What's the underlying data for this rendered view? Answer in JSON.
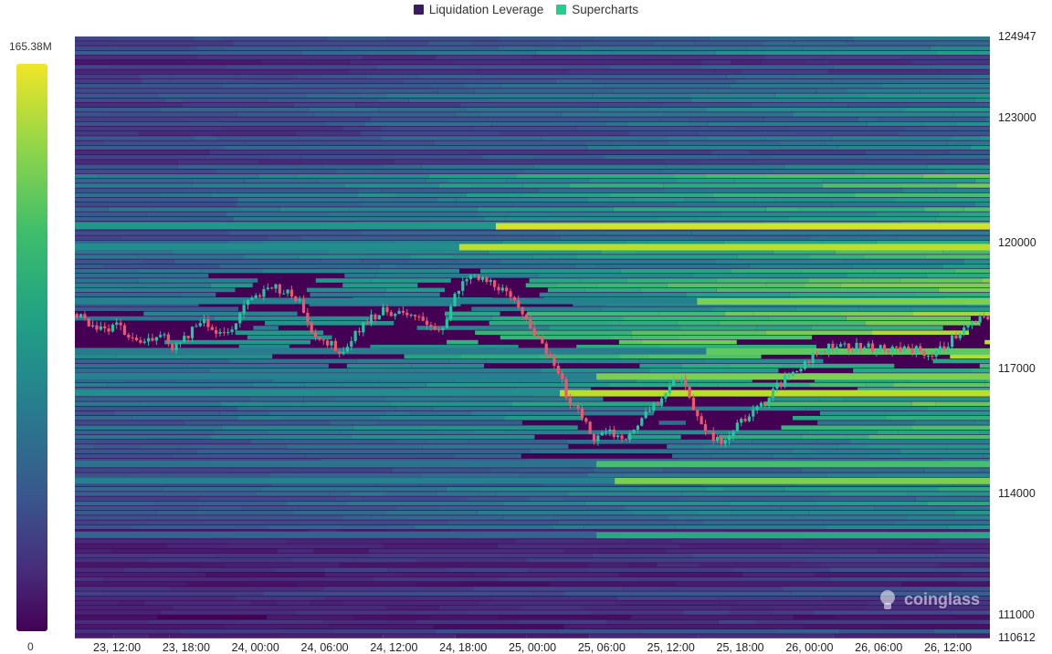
{
  "legend": {
    "items": [
      {
        "label": "Liquidation Leverage",
        "color": "#3b1a63"
      },
      {
        "label": "Supercharts",
        "color": "#1fcf8a"
      }
    ]
  },
  "colorbar": {
    "max_label": "165.38M",
    "min_label": "0"
  },
  "watermark": {
    "text": "coinglass",
    "icon": "coinglass-logo-icon"
  },
  "colors": {
    "up_candle": "#26c6a0",
    "down_candle": "#f0566e",
    "heat_low": "#440154",
    "heat_high": "#f0e626"
  },
  "chart_data": {
    "type": "heatmap",
    "ylim": [
      110612,
      124947
    ],
    "y_ticks": [
      "124947",
      "123000",
      "120000",
      "117000",
      "114000",
      "111000",
      "110612"
    ],
    "x_ticks": [
      "23, 12:00",
      "23, 18:00",
      "24, 00:00",
      "24, 06:00",
      "24, 12:00",
      "24, 18:00",
      "25, 00:00",
      "25, 06:00",
      "25, 12:00",
      "25, 18:00",
      "26, 00:00",
      "26, 06:00",
      "26, 12:00"
    ],
    "price_path": [
      [
        0,
        118300
      ],
      [
        5,
        118100
      ],
      [
        10,
        117900
      ],
      [
        15,
        118000
      ],
      [
        20,
        117700
      ],
      [
        25,
        117600
      ],
      [
        30,
        117900
      ],
      [
        35,
        117500
      ],
      [
        40,
        117800
      ],
      [
        45,
        118200
      ],
      [
        50,
        117900
      ],
      [
        55,
        117800
      ],
      [
        60,
        118500
      ],
      [
        65,
        118700
      ],
      [
        70,
        119000
      ],
      [
        75,
        118800
      ],
      [
        80,
        118600
      ],
      [
        85,
        117800
      ],
      [
        90,
        117600
      ],
      [
        95,
        117400
      ],
      [
        100,
        117900
      ],
      [
        105,
        118200
      ],
      [
        110,
        118400
      ],
      [
        115,
        118300
      ],
      [
        120,
        118200
      ],
      [
        125,
        118100
      ],
      [
        130,
        117900
      ],
      [
        135,
        118700
      ],
      [
        140,
        119200
      ],
      [
        145,
        119100
      ],
      [
        150,
        119000
      ],
      [
        155,
        118600
      ],
      [
        160,
        118300
      ],
      [
        165,
        117600
      ],
      [
        170,
        117200
      ],
      [
        175,
        116300
      ],
      [
        180,
        115800
      ],
      [
        185,
        115300
      ],
      [
        190,
        115500
      ],
      [
        195,
        115200
      ],
      [
        200,
        115700
      ],
      [
        205,
        116100
      ],
      [
        210,
        116500
      ],
      [
        215,
        116800
      ],
      [
        220,
        116000
      ],
      [
        225,
        115500
      ],
      [
        230,
        115100
      ],
      [
        235,
        115700
      ],
      [
        240,
        115900
      ],
      [
        245,
        116200
      ],
      [
        250,
        116600
      ],
      [
        255,
        116900
      ],
      [
        260,
        117200
      ],
      [
        265,
        117400
      ],
      [
        270,
        117600
      ],
      [
        275,
        117500
      ],
      [
        280,
        117500
      ],
      [
        285,
        117500
      ],
      [
        290,
        117400
      ],
      [
        295,
        117500
      ],
      [
        300,
        117400
      ],
      [
        305,
        117300
      ],
      [
        310,
        117600
      ],
      [
        315,
        117900
      ],
      [
        320,
        118100
      ],
      [
        325,
        118200
      ]
    ],
    "price_unit_note": "",
    "liquidation_levels": [
      {
        "price": 120400,
        "intensity": 0.95,
        "from": 0.46
      },
      {
        "price": 119900,
        "intensity": 0.9,
        "from": 0.42
      },
      {
        "price": 118600,
        "intensity": 0.8,
        "from": 0.68
      },
      {
        "price": 117400,
        "intensity": 0.75,
        "from": 0.69
      },
      {
        "price": 116800,
        "intensity": 0.8,
        "from": 0.57
      },
      {
        "price": 116400,
        "intensity": 0.9,
        "from": 0.53
      },
      {
        "price": 114700,
        "intensity": 0.7,
        "from": 0.57
      },
      {
        "price": 114300,
        "intensity": 0.8,
        "from": 0.59
      },
      {
        "price": 113000,
        "intensity": 0.6,
        "from": 0.57
      }
    ]
  }
}
